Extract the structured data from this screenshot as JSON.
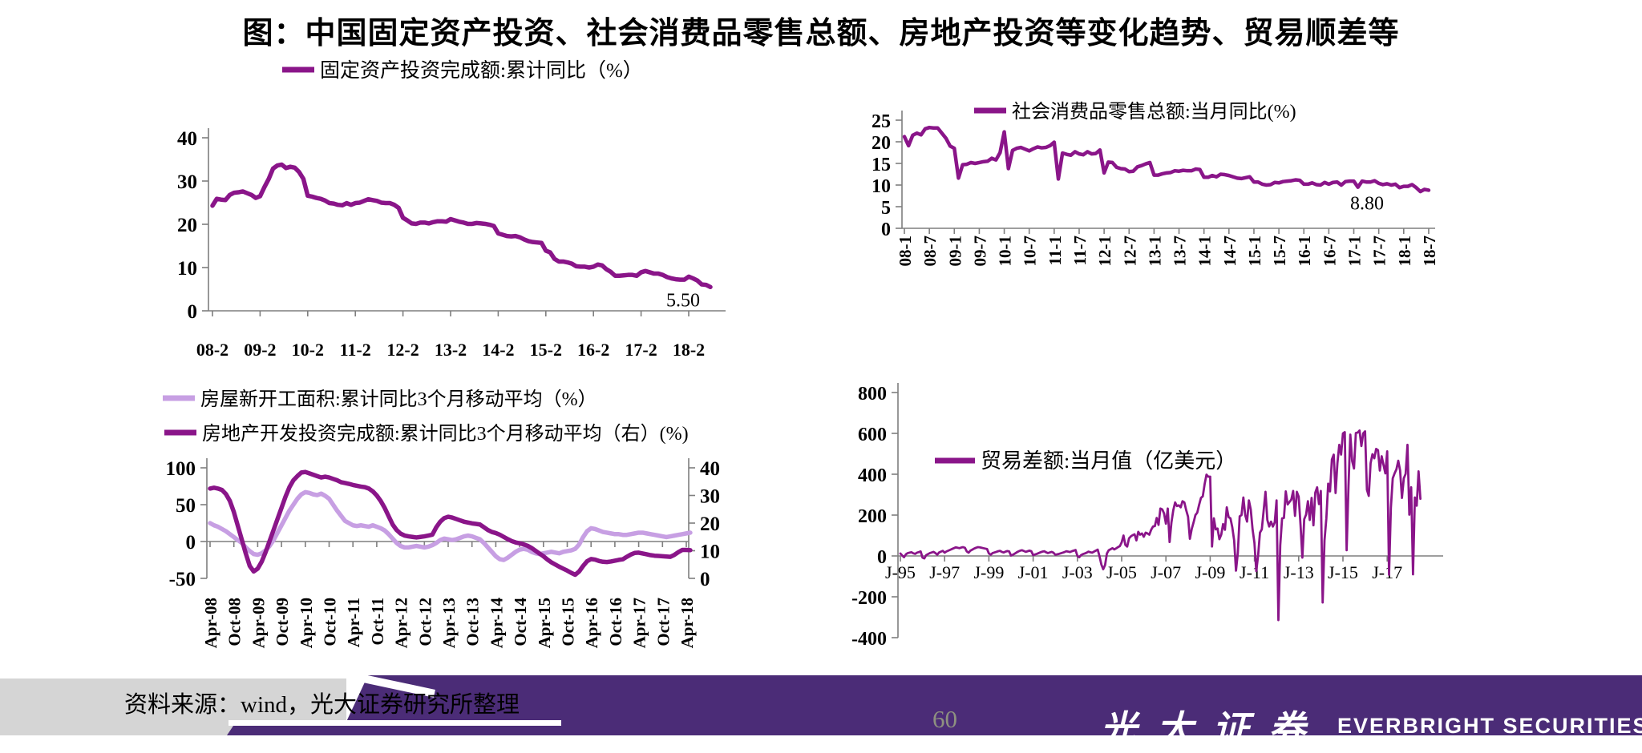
{
  "title": "图：中国固定资产投资、社会消费品零售总额、房地产投资等变化趋势、贸易顺差等",
  "colors": {
    "series_main": "#8A1589",
    "series_light": "#C79FE3",
    "axis": "#7F7F7F",
    "negative_tick": "#A14B4B",
    "footer_purple": "#4B2C77",
    "footer_gray": "#D5D5D5",
    "page_number": "#8E9180",
    "logo_text": "#FFFFFF"
  },
  "footer": {
    "source": "资料来源：wind，光大证券研究所整理",
    "page_number": "60",
    "logo_cn": "光大证券",
    "logo_en": "EVERBRIGHT SECURITIES"
  },
  "chart_data": [
    {
      "id": "fai",
      "type": "line",
      "legend": [
        {
          "label": "固定资产投资完成额:累计同比（%）",
          "color": "series_main"
        }
      ],
      "y_axis": {
        "min": 0,
        "max": 40,
        "ticks": [
          40,
          30,
          20,
          10,
          0
        ]
      },
      "x_tick_step": 11,
      "x_ticks": [
        "08-2",
        "09-2",
        "10-2",
        "11-2",
        "12-2",
        "13-2",
        "14-2",
        "15-2",
        "16-2",
        "17-2",
        "18-2"
      ],
      "axis_at_zero": false,
      "series": [
        {
          "name": "固定资产投资完成额:累计同比（%）",
          "axis": "left",
          "color": "series_main",
          "values": [
            24.3,
            25.9,
            25.7,
            25.6,
            26.8,
            27.3,
            27.4,
            27.6,
            27.2,
            26.8,
            26.1,
            26.5,
            28.6,
            30.5,
            32.9,
            33.6,
            33.8,
            33.0,
            33.3,
            33.1,
            32.1,
            30.5,
            26.6,
            26.4,
            26.1,
            25.9,
            25.5,
            24.9,
            24.8,
            24.5,
            24.4,
            24.9,
            24.5,
            24.9,
            25.0,
            25.4,
            25.8,
            25.6,
            25.4,
            25.0,
            24.9,
            24.9,
            24.5,
            23.8,
            21.5,
            20.9,
            20.2,
            20.1,
            20.4,
            20.4,
            20.2,
            20.5,
            20.7,
            20.7,
            20.6,
            21.2,
            20.9,
            20.6,
            20.4,
            20.1,
            20.1,
            20.3,
            20.2,
            20.1,
            19.9,
            19.6,
            17.9,
            17.6,
            17.3,
            17.2,
            17.3,
            17.0,
            16.5,
            16.1,
            15.9,
            15.8,
            15.7,
            13.9,
            13.5,
            12.0,
            11.4,
            11.4,
            11.2,
            10.9,
            10.3,
            10.2,
            10.2,
            10.0,
            10.2,
            10.7,
            10.5,
            9.6,
            9.0,
            8.1,
            8.1,
            8.2,
            8.3,
            8.3,
            8.1,
            8.9,
            9.2,
            8.9,
            8.6,
            8.6,
            8.3,
            7.8,
            7.5,
            7.3,
            7.2,
            7.2,
            7.9,
            7.5,
            7.0,
            6.1,
            6.0,
            5.5
          ]
        }
      ],
      "annotations": [
        {
          "text": "5.50",
          "offset": [
            -34,
            24
          ]
        }
      ]
    },
    {
      "id": "retail",
      "type": "line",
      "legend": [
        {
          "label": "社会消费品零售总额:当月同比(%)",
          "color": "series_main"
        }
      ],
      "y_axis": {
        "min": 0,
        "max": 25,
        "ticks": [
          25,
          20,
          15,
          10,
          5,
          0
        ]
      },
      "x_tick_step": 6,
      "x_ticks": [
        "08-1",
        "08-7",
        "09-1",
        "09-7",
        "10-1",
        "10-7",
        "11-1",
        "11-7",
        "12-1",
        "12-7",
        "13-1",
        "13-7",
        "14-1",
        "14-7",
        "15-1",
        "15-7",
        "16-1",
        "16-7",
        "17-1",
        "17-7",
        "18-1",
        "18-7"
      ],
      "axis_at_zero": false,
      "series": [
        {
          "name": "社会消费品零售总额:当月同比(%)",
          "axis": "left",
          "color": "series_main",
          "values": [
            21.2,
            19.1,
            21.5,
            22.0,
            21.6,
            23.0,
            23.3,
            23.2,
            23.2,
            22.0,
            20.8,
            19.0,
            18.5,
            11.6,
            14.7,
            14.8,
            15.2,
            15.0,
            15.2,
            15.4,
            15.5,
            16.2,
            15.8,
            17.5,
            22.3,
            13.8,
            18.0,
            18.5,
            18.7,
            18.3,
            17.9,
            18.4,
            18.8,
            18.6,
            18.7,
            19.1,
            19.9,
            11.4,
            17.4,
            17.1,
            16.9,
            17.7,
            17.2,
            17.0,
            17.7,
            17.2,
            17.3,
            18.1,
            12.8,
            15.3,
            15.2,
            14.1,
            13.8,
            13.7,
            13.1,
            13.2,
            14.2,
            14.5,
            14.9,
            15.2,
            12.3,
            12.3,
            12.6,
            12.8,
            12.9,
            13.3,
            13.2,
            13.4,
            13.3,
            13.3,
            13.7,
            13.6,
            11.8,
            11.8,
            12.2,
            11.9,
            12.5,
            12.4,
            12.2,
            11.9,
            11.6,
            11.5,
            11.7,
            11.9,
            10.7,
            10.7,
            10.2,
            10.0,
            10.1,
            10.6,
            10.5,
            10.8,
            10.9,
            11.0,
            11.2,
            11.1,
            10.2,
            10.2,
            10.5,
            10.1,
            10.0,
            10.6,
            10.2,
            10.6,
            10.7,
            10.0,
            10.8,
            10.9,
            10.9,
            9.5,
            10.9,
            10.7,
            10.7,
            11.0,
            10.4,
            10.1,
            10.3,
            10.0,
            10.2,
            9.4,
            9.7,
            9.7,
            10.1,
            9.4,
            8.5,
            9.0,
            8.8
          ]
        }
      ],
      "annotations": [
        {
          "text": "8.80",
          "offset": [
            -77,
            24
          ]
        }
      ]
    },
    {
      "id": "realestate",
      "type": "line",
      "legend": [
        {
          "label": "房屋新开工面积:累计同比3个月移动平均（%）",
          "color": "series_light"
        },
        {
          "label": "房地产开发投资完成额:累计同比3个月移动平均（右）(%)",
          "color": "series_main"
        }
      ],
      "y_axis": {
        "min": -50,
        "max": 100,
        "ticks": [
          100,
          50,
          0,
          -50
        ]
      },
      "y_axis_right": {
        "min": 0,
        "max": 40,
        "ticks": [
          40,
          30,
          20,
          10,
          0
        ]
      },
      "x_tick_step": 6,
      "x_ticks": [
        "Apr-08",
        "Oct-08",
        "Apr-09",
        "Oct-09",
        "Apr-10",
        "Oct-10",
        "Apr-11",
        "Oct-11",
        "Apr-12",
        "Oct-12",
        "Apr-13",
        "Oct-13",
        "Apr-14",
        "Oct-14",
        "Apr-15",
        "Oct-15",
        "Apr-16",
        "Oct-16",
        "Apr-17",
        "Oct-17",
        "Apr-18"
      ],
      "axis_at_zero": true,
      "series": [
        {
          "name": "房屋新开工面积:累计同比3个月移动平均（%）",
          "axis": "left",
          "color": "series_light",
          "values": [
            25,
            22,
            20,
            17,
            14,
            10,
            6,
            2,
            -2,
            -8,
            -13,
            -17,
            -18,
            -16,
            -12,
            -6,
            2,
            12,
            22,
            32,
            42,
            50,
            58,
            64,
            67,
            66,
            64,
            63,
            65,
            62,
            58,
            50,
            42,
            35,
            28,
            25,
            22,
            21,
            22,
            21,
            20,
            22,
            20,
            18,
            15,
            10,
            4,
            -2,
            -6,
            -8,
            -8,
            -7,
            -6,
            -7,
            -8,
            -7,
            -5,
            -2,
            2,
            4,
            3,
            2,
            3,
            5,
            7,
            8,
            7,
            5,
            3,
            -2,
            -8,
            -14,
            -20,
            -24,
            -25,
            -22,
            -18,
            -14,
            -11,
            -10,
            -11,
            -14,
            -16,
            -17,
            -16,
            -15,
            -14,
            -15,
            -16,
            -14,
            -13,
            -12,
            -10,
            -4,
            6,
            14,
            18,
            17,
            15,
            13,
            12,
            11,
            10,
            10,
            9,
            9,
            10,
            11,
            12,
            12,
            11,
            10,
            9,
            8,
            7,
            6,
            7,
            8,
            9,
            10,
            11,
            12
          ]
        },
        {
          "name": "房地产开发投资完成额:累计同比3个月移动平均（右）(%)",
          "axis": "right",
          "color": "series_main",
          "values": [
            32.5,
            32.8,
            32.5,
            32.0,
            30.5,
            28.0,
            24.0,
            19.0,
            14.0,
            9.0,
            4.5,
            2.5,
            3.5,
            6.0,
            9.5,
            13.5,
            17.5,
            21.5,
            25.5,
            29.5,
            33.0,
            35.5,
            37.0,
            38.3,
            38.5,
            38.0,
            37.5,
            37.0,
            36.5,
            36.8,
            36.5,
            36.0,
            35.5,
            34.8,
            34.5,
            34.2,
            33.8,
            33.5,
            33.2,
            33.0,
            32.5,
            31.5,
            30.0,
            28.0,
            25.5,
            22.5,
            19.5,
            17.5,
            16.2,
            15.5,
            15.2,
            15.0,
            14.8,
            15.0,
            15.2,
            15.5,
            15.8,
            18.5,
            20.5,
            21.8,
            22.3,
            22.0,
            21.5,
            21.0,
            20.5,
            20.2,
            19.9,
            19.7,
            19.5,
            18.5,
            17.5,
            16.8,
            16.4,
            15.8,
            15.0,
            14.2,
            13.5,
            13.0,
            12.7,
            12.3,
            11.8,
            11.0,
            10.0,
            9.0,
            8.0,
            6.8,
            5.8,
            5.0,
            4.2,
            3.5,
            2.8,
            2.0,
            1.3,
            2.5,
            4.5,
            6.2,
            7.0,
            6.8,
            6.3,
            6.0,
            5.9,
            6.1,
            6.4,
            6.7,
            6.9,
            7.8,
            8.6,
            9.2,
            9.3,
            9.0,
            8.7,
            8.4,
            8.2,
            8.1,
            8.0,
            7.9,
            7.8,
            8.5,
            9.5,
            10.3,
            10.3,
            10.2
          ]
        }
      ]
    },
    {
      "id": "trade",
      "type": "line",
      "legend": [
        {
          "label": "贸易差额:当月值（亿美元）",
          "color": "series_main"
        }
      ],
      "y_axis": {
        "min": -400,
        "max": 800,
        "ticks": [
          800,
          600,
          400,
          200,
          0,
          -200,
          -400
        ]
      },
      "x_tick_step": 24,
      "x_ticks": [
        "J-95",
        "J-97",
        "J-99",
        "J-01",
        "J-03",
        "J-05",
        "J-07",
        "J-09",
        "J-11",
        "J-13",
        "J-15",
        "J-17"
      ],
      "axis_at_zero": true,
      "series": [
        {
          "name": "贸易差额:当月值（亿美元）",
          "axis": "left",
          "color": "series_main",
          "values": [
            12,
            2,
            -6,
            8,
            14,
            16,
            18,
            13,
            10,
            16,
            19,
            22,
            -8,
            -12,
            4,
            9,
            14,
            17,
            20,
            14,
            6,
            17,
            21,
            25,
            16,
            22,
            26,
            30,
            34,
            38,
            42,
            40,
            38,
            41,
            43,
            40,
            22,
            16,
            26,
            31,
            36,
            40,
            43,
            42,
            40,
            38,
            36,
            34,
            12,
            6,
            14,
            17,
            20,
            23,
            25,
            20,
            17,
            21,
            24,
            22,
            2,
            6,
            11,
            17,
            22,
            26,
            28,
            24,
            20,
            23,
            26,
            23,
            4,
            7,
            10,
            14,
            18,
            21,
            23,
            18,
            14,
            17,
            20,
            16,
            6,
            8,
            10,
            13,
            16,
            19,
            23,
            21,
            19,
            23,
            26,
            29,
            0,
            -6,
            4,
            9,
            12,
            16,
            21,
            18,
            16,
            21,
            26,
            31,
            -2,
            -42,
            -65,
            -45,
            12,
            28,
            33,
            38,
            32,
            37,
            43,
            48,
            66,
            100,
            54,
            46,
            86,
            96,
            102,
            106,
            76,
            118,
            104,
            110,
            94,
            114,
            110,
            104,
            128,
            144,
            146,
            186,
            152,
            232,
            228,
            208,
            158,
            232,
            68,
            164,
            224,
            262,
            244,
            248,
            238,
            268,
            262,
            224,
            192,
            84,
            132,
            164,
            200,
            212,
            250,
            284,
            292,
            352,
            398,
            388,
            388,
            46,
            184,
            130,
            134,
            82,
            104,
            156,
            128,
            238,
            190,
            184,
            140,
            76,
            -72,
            16,
            194,
            200,
            286,
            200,
            168,
            272,
            228,
            130,
            64,
            -74,
            2,
            114,
            130,
            222,
            314,
            176,
            144,
            168,
            144,
            164,
            272,
            -314,
            52,
            184,
            186,
            316,
            252,
            264,
            276,
            318,
            196,
            314,
            290,
            152,
            -8,
            180,
            202,
            268,
            176,
            284,
            150,
            310,
            336,
            254,
            318,
            -228,
            76,
            184,
            354,
            316,
            472,
            496,
            308,
            454,
            544,
            496,
            600,
            606,
            28,
            340,
            594,
            464,
            428,
            602,
            604,
            614,
            538,
            600,
            610,
            324,
            294,
            454,
            498,
            478,
            524,
            518,
            418,
            488,
            446,
            404,
            512,
            -92,
            236,
            380,
            404,
            424,
            466,
            418,
            284,
            380,
            402,
            544,
            202,
            336,
            -90,
            286,
            246,
            414,
            280
          ]
        }
      ]
    }
  ]
}
